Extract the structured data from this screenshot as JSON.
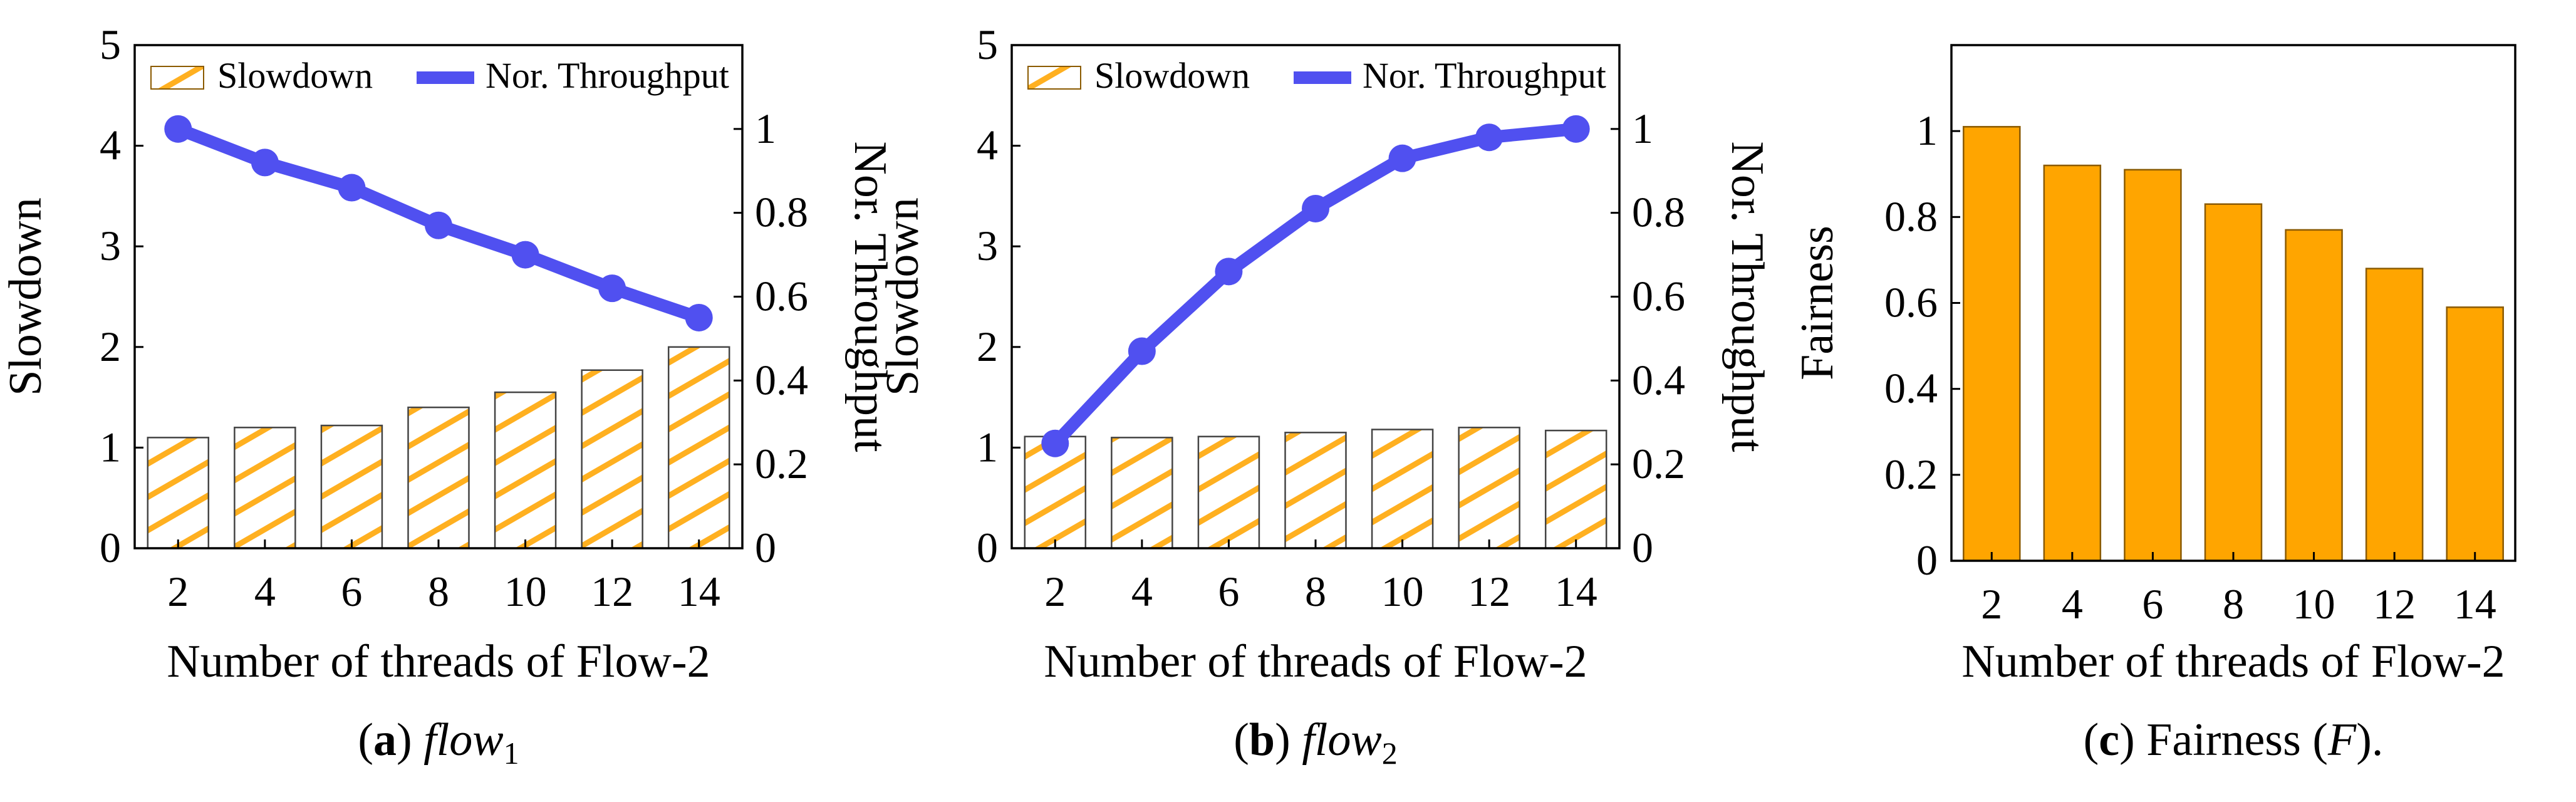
{
  "colors": {
    "accent_orange": "#FFA500",
    "bar_fill": "#FFA500",
    "hatch_orange": "#FFB020",
    "line_blue": "#5050F0",
    "axis": "#000000"
  },
  "chart_data": [
    {
      "id": "a",
      "type": "bar+line",
      "categories": [
        "2",
        "4",
        "6",
        "8",
        "10",
        "12",
        "14"
      ],
      "series": [
        {
          "name": "Slowdown",
          "kind": "bar",
          "axis": "left",
          "values": [
            1.1,
            1.2,
            1.22,
            1.4,
            1.55,
            1.77,
            2.0
          ]
        },
        {
          "name": "Nor. Throughput",
          "kind": "line",
          "axis": "right",
          "values": [
            1.0,
            0.92,
            0.86,
            0.77,
            0.7,
            0.62,
            0.55
          ]
        }
      ],
      "xlabel": "Number of threads of Flow-2",
      "ylabel": "Slowdown",
      "ylabel_right": "Nor. Throughput",
      "ylim": [
        0,
        5
      ],
      "ylim_right": [
        0,
        1.2
      ],
      "yticks": [
        "0",
        "1",
        "2",
        "3",
        "4",
        "5"
      ],
      "yticks_right": [
        "0",
        "0.2",
        "0.4",
        "0.6",
        "0.8",
        "1"
      ],
      "legend": [
        "Slowdown",
        "Nor. Throughput"
      ],
      "legend_position": "top",
      "caption_label": "(a)",
      "caption_text": "flow",
      "caption_sub": "1"
    },
    {
      "id": "b",
      "type": "bar+line",
      "categories": [
        "2",
        "4",
        "6",
        "8",
        "10",
        "12",
        "14"
      ],
      "series": [
        {
          "name": "Slowdown",
          "kind": "bar",
          "axis": "left",
          "values": [
            1.11,
            1.1,
            1.11,
            1.15,
            1.18,
            1.2,
            1.17
          ]
        },
        {
          "name": "Nor. Throughput",
          "kind": "line",
          "axis": "right",
          "values": [
            0.25,
            0.47,
            0.66,
            0.81,
            0.93,
            0.98,
            1.0
          ]
        }
      ],
      "xlabel": "Number of threads of Flow-2",
      "ylabel": "Slowdown",
      "ylabel_right": "Nor. Throughput",
      "ylim": [
        0,
        5
      ],
      "ylim_right": [
        0,
        1.2
      ],
      "yticks": [
        "0",
        "1",
        "2",
        "3",
        "4",
        "5"
      ],
      "yticks_right": [
        "0",
        "0.2",
        "0.4",
        "0.6",
        "0.8",
        "1"
      ],
      "legend": [
        "Slowdown",
        "Nor. Throughput"
      ],
      "legend_position": "top",
      "caption_label": "(b)",
      "caption_text": "flow",
      "caption_sub": "2"
    },
    {
      "id": "c",
      "type": "bar",
      "categories": [
        "2",
        "4",
        "6",
        "8",
        "10",
        "12",
        "14"
      ],
      "values": [
        1.01,
        0.92,
        0.91,
        0.83,
        0.77,
        0.68,
        0.59
      ],
      "xlabel": "Number of threads of Flow-2",
      "ylabel": "Fairness",
      "ylim": [
        0,
        1.2
      ],
      "yticks": [
        "0",
        "0.2",
        "0.4",
        "0.6",
        "0.8",
        "1"
      ],
      "caption_label": "(c)",
      "caption_text": "Fairness (",
      "caption_var": "F",
      "caption_end": ")."
    }
  ]
}
